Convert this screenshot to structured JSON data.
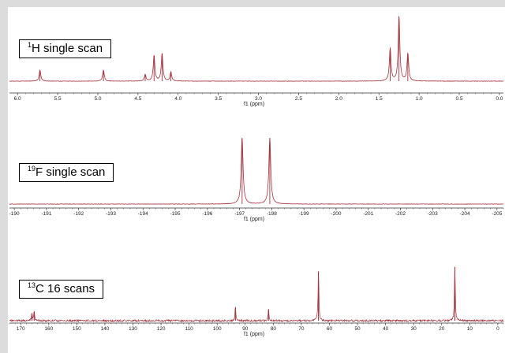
{
  "colors": {
    "spectrum": "#a3333d",
    "axis": "#333333",
    "frame": "#dcdcdc"
  },
  "chart_data": [
    {
      "type": "line",
      "label": {
        "iso": "1",
        "text": "H single scan"
      },
      "xlabel": "f1 (ppm)",
      "xlim": [
        6.1,
        -0.05
      ],
      "ticks": [
        "6.0",
        "5.5",
        "5.0",
        "4.5",
        "4.0",
        "3.5",
        "3.0",
        "2.5",
        "2.0",
        "1.5",
        "1.0",
        "0.5",
        "0.0"
      ],
      "tick_values": [
        6.0,
        5.5,
        5.0,
        4.5,
        4.0,
        3.5,
        3.0,
        2.5,
        2.0,
        1.5,
        1.0,
        0.5,
        0.0
      ],
      "ylim": [
        0,
        1.0
      ],
      "peaks": [
        {
          "ppm": 5.72,
          "height": 0.17
        },
        {
          "ppm": 4.93,
          "height": 0.17
        },
        {
          "ppm": 4.41,
          "height": 0.1
        },
        {
          "ppm": 4.3,
          "height": 0.4
        },
        {
          "ppm": 4.2,
          "height": 0.43
        },
        {
          "ppm": 4.09,
          "height": 0.14
        },
        {
          "ppm": 1.36,
          "height": 0.51
        },
        {
          "ppm": 1.25,
          "height": 1.0
        },
        {
          "ppm": 1.14,
          "height": 0.43
        }
      ]
    },
    {
      "type": "line",
      "label": {
        "iso": "19",
        "text": "F single scan"
      },
      "xlabel": "f1 (ppm)",
      "xlim": [
        -189.85,
        -205.2
      ],
      "ticks": [
        "-190",
        "-191",
        "-192",
        "-193",
        "-194",
        "-195",
        "-196",
        "-197",
        "-198",
        "-199",
        "-200",
        "-201",
        "-202",
        "-203",
        "-204",
        "-205"
      ],
      "tick_values": [
        -190,
        -191,
        -192,
        -193,
        -194,
        -195,
        -196,
        -197,
        -198,
        -199,
        -200,
        -201,
        -202,
        -203,
        -204,
        -205
      ],
      "ylim": [
        0,
        1.0
      ],
      "peaks": [
        {
          "ppm": -197.08,
          "height": 1.0
        },
        {
          "ppm": -197.94,
          "height": 1.0
        }
      ]
    },
    {
      "type": "line",
      "label": {
        "iso": "13",
        "text": "C 16 scans"
      },
      "xlabel": "f1 (ppm)",
      "xlim": [
        174,
        -2
      ],
      "ticks": [
        "170",
        "160",
        "150",
        "140",
        "130",
        "120",
        "110",
        "100",
        "90",
        "80",
        "70",
        "60",
        "50",
        "40",
        "30",
        "20",
        "10",
        "0"
      ],
      "tick_values": [
        170,
        160,
        150,
        140,
        130,
        120,
        110,
        100,
        90,
        80,
        70,
        60,
        50,
        40,
        30,
        20,
        10,
        0
      ],
      "ylim": [
        0,
        1.0
      ],
      "peaks": [
        {
          "ppm": 166.0,
          "height": 0.13
        },
        {
          "ppm": 165.2,
          "height": 0.16
        },
        {
          "ppm": 93.5,
          "height": 0.24
        },
        {
          "ppm": 81.7,
          "height": 0.2
        },
        {
          "ppm": 63.9,
          "height": 0.87
        },
        {
          "ppm": 15.3,
          "height": 0.95
        }
      ]
    }
  ]
}
